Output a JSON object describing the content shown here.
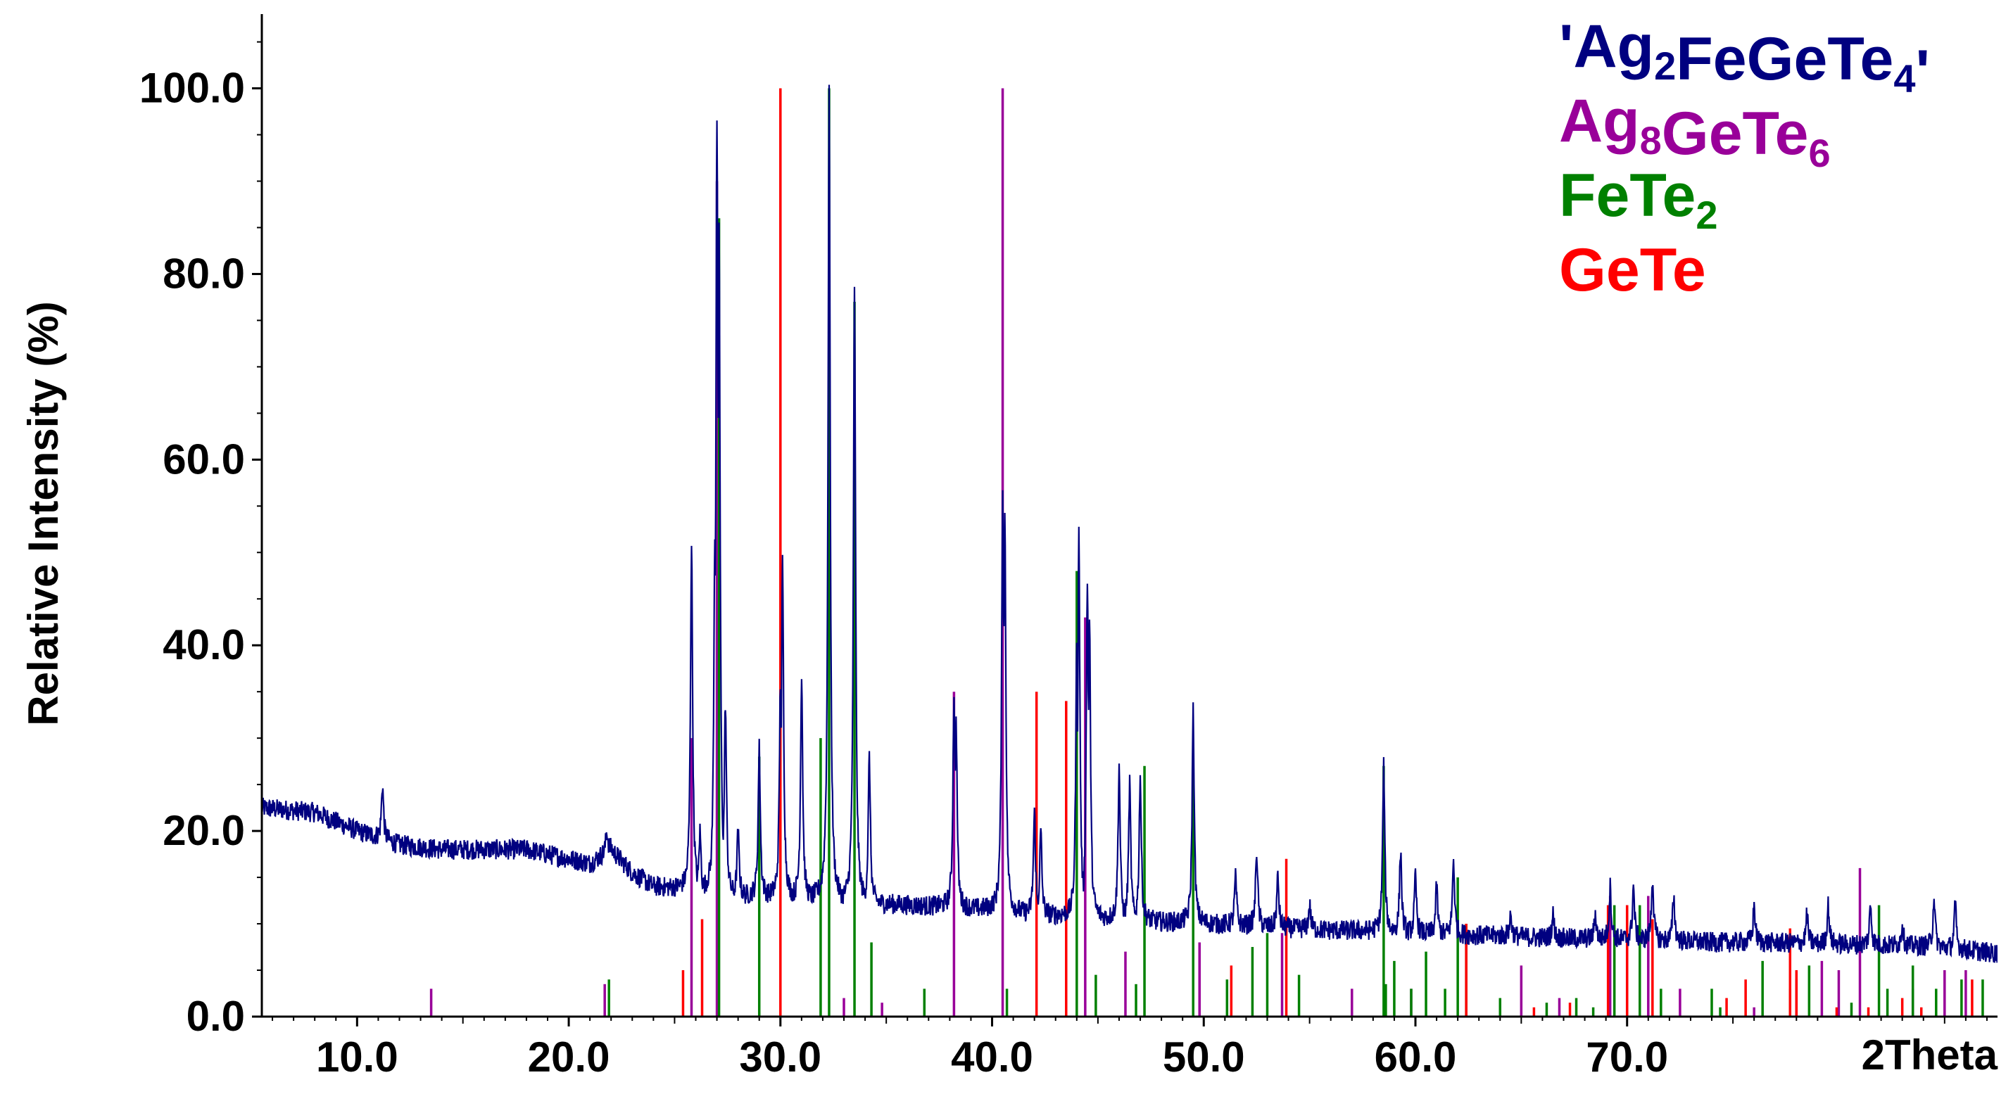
{
  "chart_data": {
    "type": "line",
    "xlabel": "2Theta",
    "ylabel": "Relative Intensity (%)",
    "xlim": [
      5.5,
      87.5
    ],
    "ylim": [
      0,
      108
    ],
    "x_ticks": [
      10,
      20,
      30,
      40,
      50,
      60,
      70
    ],
    "x_tick_labels": [
      "10.0",
      "20.0",
      "30.0",
      "40.0",
      "50.0",
      "60.0",
      "70.0"
    ],
    "y_ticks": [
      0,
      20,
      40,
      60,
      80,
      100
    ],
    "y_tick_labels": [
      "0.0",
      "20.0",
      "40.0",
      "60.0",
      "80.0",
      "100.0"
    ],
    "legend_position": "top-right",
    "grid": false,
    "series": [
      {
        "name": "'Ag2FeGeTe4'",
        "color": "#000080",
        "style": "line",
        "background": [
          [
            5.5,
            22.5
          ],
          [
            8,
            22
          ],
          [
            10,
            20
          ],
          [
            12,
            18.5
          ],
          [
            14,
            18
          ],
          [
            16,
            18
          ],
          [
            18,
            18
          ],
          [
            20,
            17
          ],
          [
            21,
            16.5
          ],
          [
            22,
            18
          ],
          [
            23,
            15.5
          ],
          [
            24,
            14
          ],
          [
            25,
            13.8
          ],
          [
            26,
            13.5
          ],
          [
            28,
            13
          ],
          [
            30,
            13
          ],
          [
            32,
            12.5
          ],
          [
            34,
            12.2
          ],
          [
            36,
            12
          ],
          [
            38,
            11.8
          ],
          [
            40,
            11.5
          ],
          [
            42,
            11
          ],
          [
            44,
            10.8
          ],
          [
            46,
            10.5
          ],
          [
            48,
            10.2
          ],
          [
            50,
            10
          ],
          [
            52,
            9.8
          ],
          [
            54,
            9.5
          ],
          [
            56,
            9.3
          ],
          [
            58,
            9.2
          ],
          [
            60,
            9
          ],
          [
            62,
            8.8
          ],
          [
            64,
            8.7
          ],
          [
            66,
            8.5
          ],
          [
            68,
            8.4
          ],
          [
            70,
            8.3
          ],
          [
            72,
            8.2
          ],
          [
            74,
            8
          ],
          [
            76,
            8
          ],
          [
            78,
            7.9
          ],
          [
            80,
            7.8
          ],
          [
            82,
            7.7
          ],
          [
            84,
            7.6
          ],
          [
            86,
            7.2
          ],
          [
            87.5,
            6.8
          ]
        ],
        "peaks": [
          [
            11.2,
            25
          ],
          [
            21.8,
            20
          ],
          [
            25.8,
            51
          ],
          [
            26.2,
            20
          ],
          [
            26.9,
            52
          ],
          [
            27.0,
            97
          ],
          [
            27.1,
            86
          ],
          [
            27.4,
            34
          ],
          [
            28.0,
            20
          ],
          [
            29.0,
            29
          ],
          [
            30.0,
            36
          ],
          [
            30.1,
            49
          ],
          [
            31.0,
            37
          ],
          [
            32.3,
            100
          ],
          [
            33.5,
            78
          ],
          [
            34.2,
            28
          ],
          [
            38.2,
            35
          ],
          [
            38.3,
            32
          ],
          [
            40.5,
            57
          ],
          [
            40.6,
            55
          ],
          [
            42.0,
            22
          ],
          [
            42.3,
            20
          ],
          [
            44.0,
            40
          ],
          [
            44.1,
            52
          ],
          [
            44.5,
            47
          ],
          [
            44.6,
            43
          ],
          [
            46.0,
            27
          ],
          [
            46.5,
            25
          ],
          [
            47.0,
            26
          ],
          [
            49.5,
            33
          ],
          [
            51.5,
            15
          ],
          [
            52.5,
            18
          ],
          [
            53.5,
            15
          ],
          [
            55.0,
            12
          ],
          [
            58.5,
            27
          ],
          [
            59.3,
            18
          ],
          [
            60.0,
            15
          ],
          [
            61.0,
            14
          ],
          [
            61.8,
            17
          ],
          [
            64.5,
            11
          ],
          [
            66.5,
            11
          ],
          [
            68.5,
            11
          ],
          [
            69.2,
            14
          ],
          [
            70.3,
            14
          ],
          [
            71.2,
            15
          ],
          [
            72.2,
            13
          ],
          [
            76.0,
            12
          ],
          [
            78.5,
            11
          ],
          [
            79.5,
            12
          ],
          [
            81.5,
            12
          ],
          [
            83.0,
            10
          ],
          [
            84.5,
            13
          ],
          [
            85.5,
            12
          ]
        ]
      },
      {
        "name": "Ag8GeTe6",
        "color": "#990099",
        "style": "sticks",
        "points": [
          [
            13.5,
            3
          ],
          [
            21.7,
            3.5
          ],
          [
            25.8,
            30
          ],
          [
            27.0,
            90
          ],
          [
            33.0,
            2
          ],
          [
            34.8,
            1.5
          ],
          [
            38.2,
            35
          ],
          [
            40.5,
            100
          ],
          [
            44.4,
            43
          ],
          [
            46.3,
            7
          ],
          [
            49.8,
            8
          ],
          [
            53.7,
            9
          ],
          [
            57.0,
            3
          ],
          [
            59.8,
            3
          ],
          [
            65.0,
            5.5
          ],
          [
            66.8,
            2
          ],
          [
            69.2,
            13
          ],
          [
            70.0,
            12
          ],
          [
            71.0,
            13
          ],
          [
            72.5,
            3
          ],
          [
            76.0,
            1
          ],
          [
            78.0,
            4
          ],
          [
            79.2,
            6
          ],
          [
            80.0,
            5
          ],
          [
            81.0,
            16
          ],
          [
            83.5,
            3
          ],
          [
            85.0,
            5
          ],
          [
            86.0,
            5
          ]
        ]
      },
      {
        "name": "FeTe2",
        "color": "#008000",
        "style": "sticks",
        "points": [
          [
            21.9,
            4
          ],
          [
            27.1,
            86
          ],
          [
            29.0,
            28
          ],
          [
            31.9,
            30
          ],
          [
            32.3,
            100
          ],
          [
            33.5,
            77
          ],
          [
            34.3,
            8
          ],
          [
            36.8,
            3
          ],
          [
            40.7,
            3
          ],
          [
            44.0,
            48
          ],
          [
            44.9,
            4.5
          ],
          [
            46.8,
            3.5
          ],
          [
            47.2,
            27
          ],
          [
            49.5,
            28
          ],
          [
            51.1,
            4
          ],
          [
            52.3,
            7.5
          ],
          [
            53.0,
            9
          ],
          [
            54.5,
            4.5
          ],
          [
            58.5,
            27
          ],
          [
            58.6,
            3.5
          ],
          [
            59.0,
            6
          ],
          [
            59.8,
            3
          ],
          [
            60.5,
            7
          ],
          [
            61.4,
            3
          ],
          [
            62.0,
            15
          ],
          [
            62.4,
            10
          ],
          [
            64.0,
            2
          ],
          [
            66.2,
            1.5
          ],
          [
            67.6,
            2
          ],
          [
            68.4,
            1
          ],
          [
            69.4,
            12
          ],
          [
            70.6,
            12
          ],
          [
            71.6,
            3
          ],
          [
            74.0,
            3
          ],
          [
            74.4,
            1
          ],
          [
            76.4,
            6
          ],
          [
            77.7,
            3
          ],
          [
            78.6,
            5.5
          ],
          [
            80.6,
            1.5
          ],
          [
            81.9,
            12
          ],
          [
            82.3,
            3
          ],
          [
            83.5,
            5.5
          ],
          [
            84.6,
            3
          ],
          [
            85.8,
            4
          ],
          [
            86.8,
            4
          ]
        ]
      },
      {
        "name": "GeTe",
        "color": "#ff0000",
        "style": "sticks",
        "points": [
          [
            25.4,
            5
          ],
          [
            26.3,
            10.5
          ],
          [
            30.0,
            100
          ],
          [
            42.1,
            35
          ],
          [
            43.5,
            34
          ],
          [
            51.3,
            5.5
          ],
          [
            53.9,
            17
          ],
          [
            62.4,
            10
          ],
          [
            65.6,
            1
          ],
          [
            67.3,
            1.5
          ],
          [
            69.1,
            12
          ],
          [
            70.0,
            12
          ],
          [
            71.2,
            10.5
          ],
          [
            74.7,
            2
          ],
          [
            75.6,
            4
          ],
          [
            77.7,
            9.5
          ],
          [
            78.0,
            5
          ],
          [
            79.9,
            1
          ],
          [
            81.4,
            1
          ],
          [
            83.0,
            2
          ],
          [
            83.9,
            1
          ],
          [
            86.3,
            4
          ]
        ]
      }
    ],
    "legend": [
      {
        "label": "'Ag",
        "sub1": "2",
        "mid": "FeGeTe",
        "sub2": "4",
        "end": "'",
        "color": "#000080"
      },
      {
        "label": "Ag",
        "sub1": "8",
        "mid": "GeTe",
        "sub2": "6",
        "end": "",
        "color": "#990099"
      },
      {
        "label": "FeTe",
        "sub1": "2",
        "mid": "",
        "sub2": "",
        "end": "",
        "color": "#008000"
      },
      {
        "label": "GeTe",
        "sub1": "",
        "mid": "",
        "sub2": "",
        "end": "",
        "color": "#ff0000"
      }
    ]
  }
}
